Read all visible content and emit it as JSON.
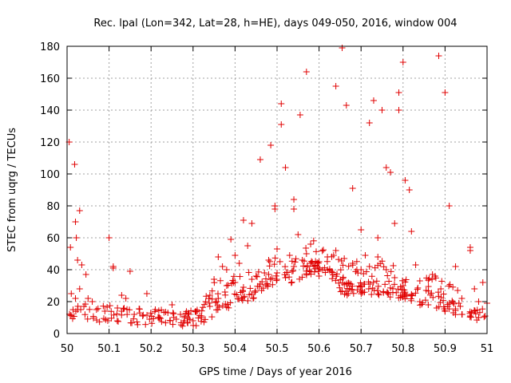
{
  "chart_data": {
    "type": "scatter",
    "title": "Rec. lpal (Lon=342, Lat=28, h=HE), days 049-050, 2016, window 004",
    "xlabel": "GPS time / Days of year 2016",
    "ylabel": "STEC from uqrg / TECUs",
    "xlim": [
      50,
      51
    ],
    "ylim": [
      0,
      180
    ],
    "x_ticks": [
      "50",
      "50.1",
      "50.2",
      "50.3",
      "50.4",
      "50.5",
      "50.6",
      "50.7",
      "50.8",
      "50.9",
      "51"
    ],
    "y_ticks": [
      "0",
      "20",
      "40",
      "60",
      "80",
      "100",
      "120",
      "140",
      "160",
      "180"
    ],
    "grid": true,
    "marker": "+",
    "color": "#e00000",
    "series": [
      {
        "name": "STEC",
        "points": [
          [
            50.005,
            120
          ],
          [
            50.008,
            54
          ],
          [
            50.018,
            106
          ],
          [
            50.02,
            70
          ],
          [
            50.022,
            60
          ],
          [
            50.03,
            77
          ],
          [
            50.025,
            46
          ],
          [
            50.035,
            43
          ],
          [
            50.045,
            37
          ],
          [
            50.01,
            25
          ],
          [
            50.02,
            22
          ],
          [
            50.03,
            28
          ],
          [
            50.05,
            22
          ],
          [
            50.06,
            20
          ],
          [
            50.1,
            60
          ],
          [
            50.11,
            42
          ],
          [
            50.11,
            41
          ],
          [
            50.13,
            24
          ],
          [
            50.15,
            39
          ],
          [
            50.14,
            22
          ],
          [
            50.13,
            14
          ],
          [
            50.19,
            25
          ],
          [
            50.21,
            15
          ],
          [
            50.24,
            13
          ],
          [
            50.25,
            18
          ],
          [
            50.27,
            12
          ],
          [
            50.28,
            10
          ],
          [
            50.29,
            12
          ],
          [
            50.31,
            14
          ],
          [
            50.33,
            20
          ],
          [
            50.34,
            24
          ],
          [
            50.35,
            34
          ],
          [
            50.36,
            48
          ],
          [
            50.37,
            42
          ],
          [
            50.38,
            40
          ],
          [
            50.39,
            59
          ],
          [
            50.4,
            49
          ],
          [
            50.41,
            44
          ],
          [
            50.42,
            71
          ],
          [
            50.43,
            55
          ],
          [
            50.44,
            69
          ],
          [
            50.45,
            36
          ],
          [
            50.46,
            109
          ],
          [
            50.47,
            38
          ],
          [
            50.48,
            46
          ],
          [
            50.485,
            118
          ],
          [
            50.495,
            80
          ],
          [
            50.495,
            78
          ],
          [
            50.5,
            53
          ],
          [
            50.51,
            144
          ],
          [
            50.51,
            131
          ],
          [
            50.52,
            104
          ],
          [
            50.53,
            49
          ],
          [
            50.54,
            84
          ],
          [
            50.54,
            78
          ],
          [
            50.55,
            62
          ],
          [
            50.555,
            137
          ],
          [
            50.57,
            164
          ],
          [
            50.57,
            50
          ],
          [
            50.58,
            56
          ],
          [
            50.59,
            42
          ],
          [
            50.6,
            36
          ],
          [
            50.62,
            40
          ],
          [
            50.64,
            155
          ],
          [
            50.655,
            179
          ],
          [
            50.665,
            143
          ],
          [
            50.68,
            91
          ],
          [
            50.69,
            40
          ],
          [
            50.7,
            65
          ],
          [
            50.71,
            49
          ],
          [
            50.72,
            132
          ],
          [
            50.73,
            146
          ],
          [
            50.74,
            60
          ],
          [
            50.75,
            140
          ],
          [
            50.76,
            104
          ],
          [
            50.77,
            101
          ],
          [
            50.78,
            69
          ],
          [
            50.79,
            140
          ],
          [
            50.79,
            151
          ],
          [
            50.8,
            170
          ],
          [
            50.805,
            96
          ],
          [
            50.815,
            90
          ],
          [
            50.82,
            64
          ],
          [
            50.83,
            43
          ],
          [
            50.84,
            33
          ],
          [
            50.855,
            27
          ],
          [
            50.87,
            37
          ],
          [
            50.885,
            174
          ],
          [
            50.89,
            28
          ],
          [
            50.9,
            151
          ],
          [
            50.91,
            80
          ],
          [
            50.925,
            42
          ],
          [
            50.93,
            27
          ],
          [
            50.94,
            22
          ],
          [
            50.96,
            54
          ],
          [
            50.96,
            52
          ],
          [
            50.97,
            28
          ],
          [
            50.98,
            20
          ],
          [
            50.99,
            32
          ],
          [
            51,
            19
          ],
          [
            50.04,
            17
          ],
          [
            50.07,
            15
          ],
          [
            50.09,
            14
          ],
          [
            50.12,
            16
          ],
          [
            50.16,
            12
          ],
          [
            50.18,
            11
          ],
          [
            50.22,
            10
          ],
          [
            50.26,
            9
          ],
          [
            50.3,
            8
          ],
          [
            50.32,
            11
          ],
          [
            50.34,
            17
          ],
          [
            50.36,
            22
          ],
          [
            50.38,
            30
          ],
          [
            50.4,
            32
          ],
          [
            50.42,
            29
          ],
          [
            50.44,
            34
          ],
          [
            50.46,
            31
          ],
          [
            50.48,
            37
          ],
          [
            50.5,
            38
          ],
          [
            50.52,
            35
          ],
          [
            50.54,
            42
          ],
          [
            50.56,
            46
          ],
          [
            50.58,
            44
          ],
          [
            50.6,
            45
          ],
          [
            50.62,
            48
          ],
          [
            50.64,
            52
          ],
          [
            50.66,
            47
          ],
          [
            50.68,
            44
          ],
          [
            50.7,
            40
          ],
          [
            50.72,
            42
          ],
          [
            50.74,
            48
          ],
          [
            50.76,
            40
          ],
          [
            50.78,
            35
          ],
          [
            50.8,
            30
          ],
          [
            50.82,
            24
          ],
          [
            50.84,
            20
          ],
          [
            50.86,
            18
          ],
          [
            50.88,
            16
          ],
          [
            50.9,
            14
          ],
          [
            50.92,
            13
          ],
          [
            50.94,
            12
          ],
          [
            50.96,
            11
          ],
          [
            50.98,
            10
          ]
        ]
      }
    ]
  }
}
